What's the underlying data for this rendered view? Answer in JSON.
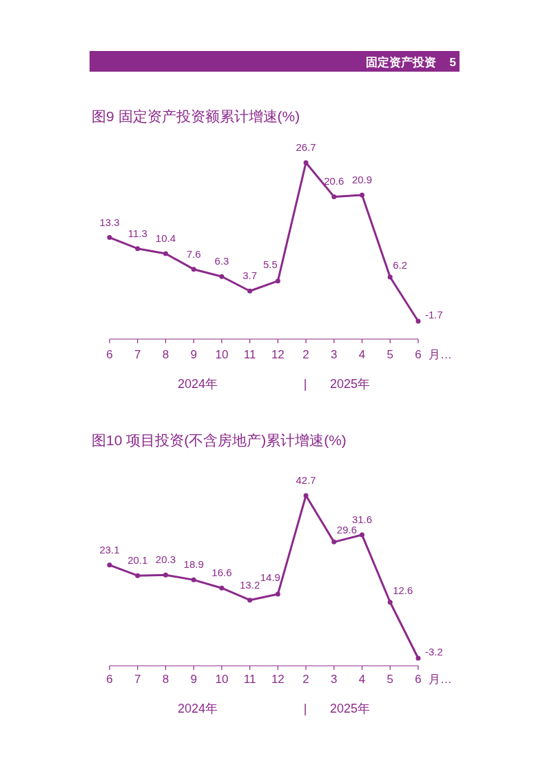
{
  "chart_data": [
    {
      "type": "line",
      "title": "图9  固定资产投资额累计增速(%)",
      "categories": [
        "6",
        "7",
        "8",
        "9",
        "10",
        "11",
        "12",
        "2",
        "3",
        "4",
        "5",
        "6"
      ],
      "xlabel": "月…",
      "values": [
        13.3,
        11.3,
        10.4,
        7.6,
        6.3,
        3.7,
        5.5,
        26.7,
        20.6,
        20.9,
        6.2,
        -1.7
      ],
      "color": "#8b2a8b",
      "marker": "circle",
      "data_labels": true,
      "annotations": [
        "2024年",
        "|",
        "2025年",
        "固定资产投资",
        "5"
      ]
    },
    {
      "type": "line",
      "title": "图10  项目投资(不含房地产)累计增速(%)",
      "categories": [
        "6",
        "7",
        "8",
        "9",
        "10",
        "11",
        "12",
        "2",
        "3",
        "4",
        "5",
        "6"
      ],
      "xlabel": "月…",
      "values": [
        23.1,
        20.1,
        20.3,
        18.9,
        16.6,
        13.2,
        14.9,
        42.7,
        29.6,
        31.6,
        12.6,
        -3.2
      ],
      "color": "#8b2a8b",
      "marker": "circle",
      "data_labels": true,
      "annotations": [
        "2024年",
        "|",
        "2025年"
      ]
    }
  ]
}
